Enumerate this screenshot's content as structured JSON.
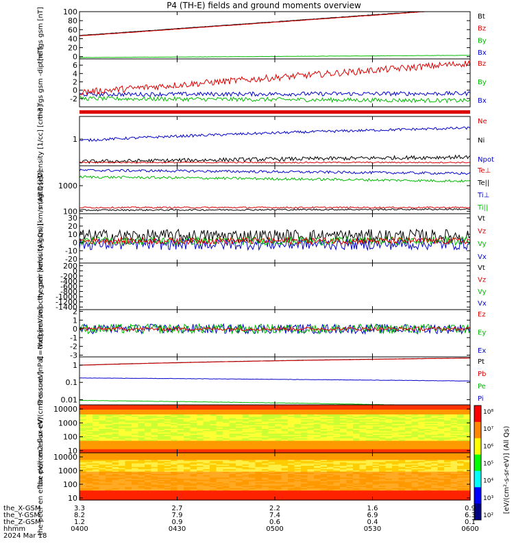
{
  "title": "P4 (TH-E) fields and ground moments overview",
  "time_axis": {
    "rows": [
      {
        "label": "the_X-GSM",
        "values": [
          "3.3",
          "2.7",
          "2.2",
          "1.6",
          "0.9"
        ]
      },
      {
        "label": "the_Y-GSM",
        "values": [
          "8.2",
          "7.9",
          "7.4",
          "6.9",
          "6.3"
        ]
      },
      {
        "label": "the_Z-GSM",
        "values": [
          "1.2",
          "0.9",
          "0.6",
          "0.4",
          "0.1"
        ]
      },
      {
        "label": "hhmm",
        "values": [
          "0400",
          "0430",
          "0500",
          "0530",
          "0600"
        ]
      }
    ],
    "date": "2024 Mar 18"
  },
  "colorbar": {
    "ticks": [
      "10⁸",
      "10⁷",
      "10⁶",
      "10⁵",
      "10⁴",
      "10³",
      "10²"
    ],
    "label": "[eV/(cm²-s-sr-eV)] (All Qs)",
    "colors": [
      "#ff0000",
      "#ff8800",
      "#ffff00",
      "#00ff00",
      "#00ffff",
      "#0000ff",
      "#000080"
    ]
  },
  "chart_data": [
    {
      "type": "line",
      "ylabel": "the fgs gsm [nT]",
      "ylim": [
        -5,
        100
      ],
      "yticks": [
        0,
        20,
        40,
        60,
        80,
        100
      ],
      "legend": [
        {
          "name": "Bt",
          "color": "#000000"
        },
        {
          "name": "Bz",
          "color": "#dd0000"
        },
        {
          "name": "By",
          "color": "#00bb00"
        },
        {
          "name": "Bx",
          "color": "#0000cc"
        }
      ],
      "series": [
        {
          "name": "Bt",
          "start": 47,
          "end": 108,
          "noise": 0.4,
          "color": "#000000"
        },
        {
          "name": "Bz",
          "start": 46,
          "end": 107,
          "noise": 0.4,
          "color": "#dd0000"
        },
        {
          "name": "By",
          "start": -2,
          "end": 3,
          "noise": 0.3,
          "color": "#00bb00"
        },
        {
          "name": "Bx",
          "start": -6,
          "end": -6,
          "noise": 0.2,
          "color": "#0000cc"
        }
      ]
    },
    {
      "type": "line",
      "ylabel": "the fgs gsm -dip [nT]",
      "ylim": [
        -4,
        7.5
      ],
      "yticks": [
        -2,
        0,
        2,
        4,
        6
      ],
      "legend": [
        {
          "name": "Bz",
          "color": "#dd0000"
        },
        {
          "name": "By",
          "color": "#00bb00"
        },
        {
          "name": "Bx",
          "color": "#0000cc"
        }
      ],
      "series": [
        {
          "name": "By",
          "start": -2,
          "end": -2.5,
          "noise": 0.5,
          "color": "#00bb00"
        },
        {
          "name": "Bx",
          "start": -1,
          "end": -0.8,
          "noise": 0.5,
          "color": "#0000cc"
        },
        {
          "name": "Bz",
          "start": -0.5,
          "end": 6.5,
          "noise": 0.8,
          "color": "#dd0000"
        }
      ]
    },
    {
      "type": "line",
      "ylabel": "Density [1/cc] [cm-3]",
      "ylog": true,
      "ylim": [
        0.15,
        5
      ],
      "yticks": [
        1
      ],
      "legend": [
        {
          "name": "Ne",
          "color": "#dd0000"
        },
        {
          "name": "Ni",
          "color": "#000000"
        },
        {
          "name": "Npot",
          "color": "#0000cc"
        }
      ],
      "series": [
        {
          "name": "Npot",
          "start": 0.9,
          "end": 2.2,
          "noise": 0.04,
          "color": "#0000cc"
        },
        {
          "name": "Ni",
          "start": 0.2,
          "end": 0.28,
          "noise": 0.06,
          "color": "#000000"
        },
        {
          "name": "Ne",
          "start": 0.19,
          "end": 0.19,
          "noise": 0.02,
          "color": "#dd0000"
        }
      ]
    },
    {
      "type": "line",
      "ylabel": "magt3 [eV]",
      "ylog": true,
      "ylim": [
        80,
        6000
      ],
      "yticks": [
        100,
        1000
      ],
      "legend": [
        {
          "name": "Te⊥",
          "color": "#dd0000"
        },
        {
          "name": "Te||",
          "color": "#000000"
        },
        {
          "name": "Ti⊥",
          "color": "#0000cc"
        },
        {
          "name": "Ti||",
          "color": "#00bb00"
        }
      ],
      "series": [
        {
          "name": "Ti⊥",
          "start": 4000,
          "end": 3000,
          "noise": 0.05,
          "color": "#0000cc"
        },
        {
          "name": "Ti||",
          "start": 2200,
          "end": 1500,
          "noise": 0.05,
          "color": "#00bb00"
        },
        {
          "name": "Te⊥",
          "start": 140,
          "end": 140,
          "noise": 0.03,
          "color": "#dd0000"
        },
        {
          "name": "Te||",
          "start": 110,
          "end": 120,
          "noise": 0.03,
          "color": "#000000"
        }
      ]
    },
    {
      "type": "line",
      "ylabel": "the peir velocity gsm [km/s (All Qs)]",
      "ylim": [
        -25,
        35
      ],
      "yticks": [
        -20,
        -10,
        0,
        10,
        20,
        30
      ],
      "legend": [
        {
          "name": "Vt",
          "color": "#000000"
        },
        {
          "name": "Vz",
          "color": "#dd0000"
        },
        {
          "name": "Vy",
          "color": "#00bb00"
        },
        {
          "name": "Vx",
          "color": "#0000cc"
        }
      ],
      "series": [
        {
          "name": "Vt",
          "start": 8,
          "end": 8,
          "noise": 8,
          "color": "#000000"
        },
        {
          "name": "Vx",
          "start": -2,
          "end": -2,
          "noise": 7,
          "color": "#0000cc"
        },
        {
          "name": "Vy",
          "start": 2,
          "end": 2,
          "noise": 5,
          "color": "#00bb00"
        },
        {
          "name": "Vz",
          "start": 2,
          "end": 2,
          "noise": 4,
          "color": "#dd0000"
        }
      ]
    },
    {
      "type": "line",
      "ylabel": "the peer velocity gsm [km/s (All Qs)]",
      "ylim": [
        -1500,
        300
      ],
      "yticks": [
        -1400,
        -1200,
        -1000,
        -800,
        -600,
        -400,
        -200,
        0,
        200
      ],
      "legend": [
        {
          "name": "Vt",
          "color": "#000000"
        },
        {
          "name": "Vz",
          "color": "#dd0000"
        },
        {
          "name": "Vy",
          "color": "#00bb00"
        },
        {
          "name": "Vx",
          "color": "#0000cc"
        }
      ],
      "series": []
    },
    {
      "type": "line",
      "ylabel": "E=-VxB [mV/m]",
      "ylim": [
        -3.2,
        2.2
      ],
      "yticks": [
        -3,
        -2,
        -1,
        0,
        1,
        2
      ],
      "legend": [
        {
          "name": "Ez",
          "color": "#dd0000"
        },
        {
          "name": "Ey",
          "color": "#00bb00"
        },
        {
          "name": "Ex",
          "color": "#0000cc"
        }
      ],
      "series": [
        {
          "name": "Ex",
          "start": 0,
          "end": 0,
          "noise": 0.55,
          "color": "#0000cc"
        },
        {
          "name": "Ey",
          "start": 0,
          "end": 0,
          "noise": 0.55,
          "color": "#00bb00"
        },
        {
          "name": "Ez",
          "start": 0,
          "end": 0,
          "noise": 0.2,
          "color": "#dd0000"
        }
      ]
    },
    {
      "type": "line",
      "ylabel": "Pressure [nPa]",
      "ylog": true,
      "ylim": [
        0.005,
        3
      ],
      "yticks": [
        0.01,
        0.1,
        1
      ],
      "legend": [
        {
          "name": "Pt",
          "color": "#000000"
        },
        {
          "name": "Pb",
          "color": "#dd0000"
        },
        {
          "name": "Pe",
          "color": "#00bb00"
        },
        {
          "name": "Pi",
          "color": "#0000cc"
        }
      ],
      "series": [
        {
          "name": "Pt",
          "start": 1.0,
          "end": 2.6,
          "noise": 0.005,
          "color": "#000000"
        },
        {
          "name": "Pb",
          "start": 0.98,
          "end": 2.55,
          "noise": 0.005,
          "color": "#dd0000"
        },
        {
          "name": "Pi",
          "start": 0.18,
          "end": 0.12,
          "noise": 0.01,
          "color": "#0000cc"
        },
        {
          "name": "Pe",
          "start": 0.009,
          "end": 0.004,
          "noise": 0.01,
          "color": "#00bb00"
        }
      ]
    },
    {
      "type": "heatmap",
      "ylabel": "the peir en eflux eV/(cm2-s-sr-eV)",
      "ylog": true,
      "ylim": [
        7,
        20000
      ],
      "yticks": [
        10,
        100,
        1000,
        10000
      ]
    },
    {
      "type": "heatmap",
      "ylabel": "the peer en eflux eV/(cm2-s-sr-eV)",
      "ylog": true,
      "ylim": [
        7,
        20000
      ],
      "yticks": [
        10,
        100,
        1000,
        10000
      ]
    }
  ]
}
